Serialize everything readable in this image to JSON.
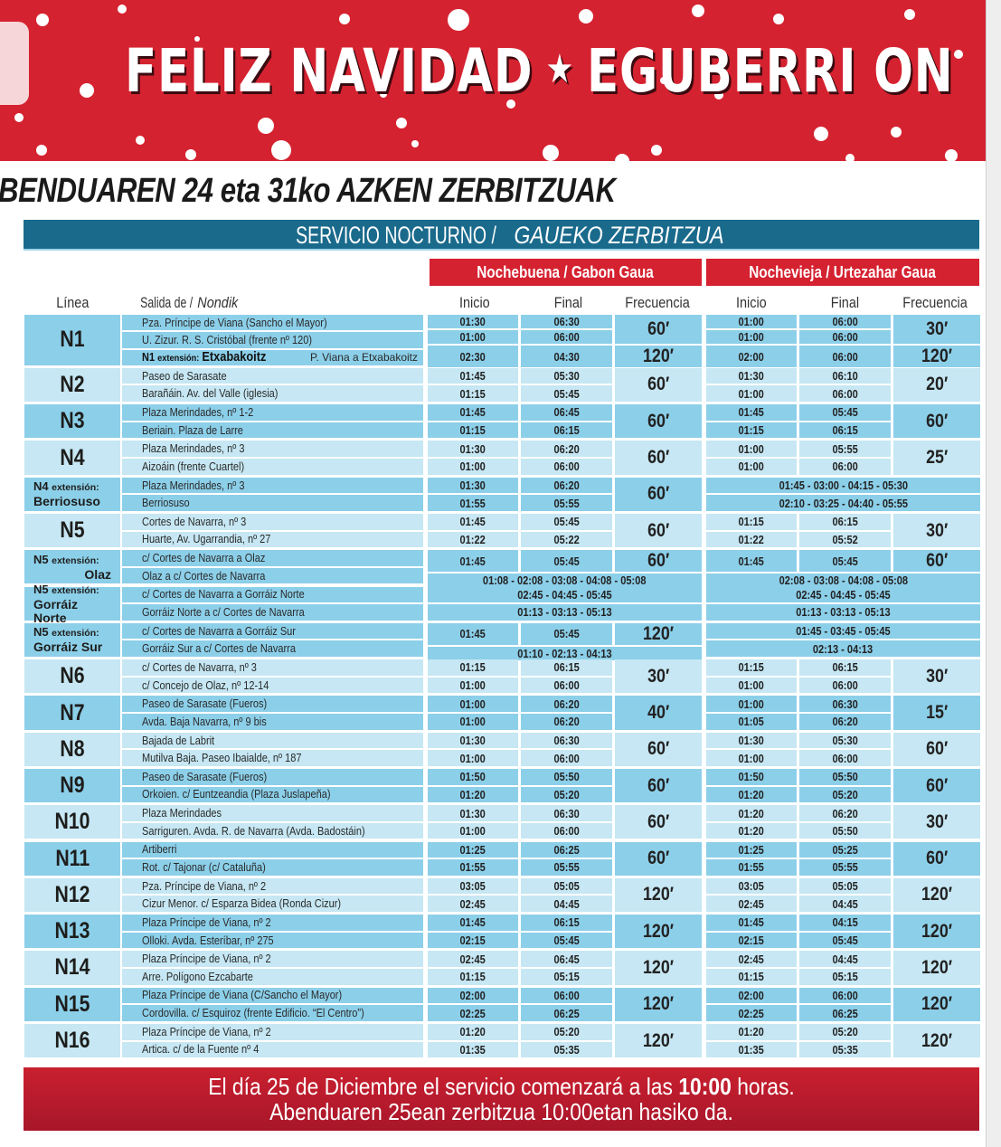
{
  "banner": {
    "text_left": "FELIZ NAVIDAD",
    "text_right": "EGUBERRI ON",
    "ornament_icon": "star-ornament-icon",
    "color": "#d52230"
  },
  "title": "BENDUAREN 24 eta 31ko AZKEN ZERBITZUAK",
  "service": {
    "es": "SERVICIO NOCTURNO / ",
    "eu": "GAUEKO ZERBITZUA",
    "color": "#1a6a8c"
  },
  "nights": {
    "nochebuena": "Nochebuena / Gabon Gaua",
    "nochevieja": "Nochevieja / Urtezahar Gaua"
  },
  "columns": {
    "linea": "Línea",
    "salida": "Salida de / ",
    "nondik": "Nondik",
    "inicio": "Inicio",
    "final": "Final",
    "frecuencia": "Frecuencia"
  },
  "colors": {
    "row_dark": "#8ccfe9",
    "row_light": "#c6e7f3",
    "red": "#d52230"
  },
  "groups": [
    {
      "line": "N1",
      "shade": "dark",
      "origins": [
        {
          "text": "Pza. Príncipe de Viana (Sancho el Mayor)"
        },
        {
          "text": "U. Zizur.  R. S. Cristóbal (frente nº 120)"
        },
        {
          "ext_line": "N1",
          "ext_word": "extensión:",
          "ext_name": "Etxabakoitz",
          "text": "P. Viana a Etxabakoitz"
        }
      ],
      "nb": [
        {
          "inicio": [
            "01:30",
            "01:00"
          ],
          "final": [
            "06:30",
            "06:00"
          ],
          "freq": "60′"
        },
        {
          "inicio": [
            "02:30"
          ],
          "final": [
            "04:30"
          ],
          "freq": "120′"
        }
      ],
      "nv": [
        {
          "inicio": [
            "01:00",
            "01:00"
          ],
          "final": [
            "06:00",
            "06:00"
          ],
          "freq": "30′"
        },
        {
          "inicio": [
            "02:00"
          ],
          "final": [
            "06:00"
          ],
          "freq": "120′"
        }
      ]
    },
    {
      "line": "N2",
      "shade": "light",
      "origins": [
        {
          "text": "Paseo de Sarasate"
        },
        {
          "text": "Barañáin. Av. del Valle (iglesia)"
        }
      ],
      "nb": [
        {
          "inicio": [
            "01:45",
            "01:15"
          ],
          "final": [
            "05:30",
            "05:45"
          ],
          "freq": "60′"
        }
      ],
      "nv": [
        {
          "inicio": [
            "01:30",
            "01:00"
          ],
          "final": [
            "06:10",
            "06:00"
          ],
          "freq": "20′"
        }
      ]
    },
    {
      "line": "N3",
      "shade": "dark",
      "origins": [
        {
          "text": "Plaza Merindades, nº 1-2"
        },
        {
          "text": "Beriain. Plaza de Larre"
        }
      ],
      "nb": [
        {
          "inicio": [
            "01:45",
            "01:15"
          ],
          "final": [
            "06:45",
            "06:15"
          ],
          "freq": "60′"
        }
      ],
      "nv": [
        {
          "inicio": [
            "01:45",
            "01:15"
          ],
          "final": [
            "05:45",
            "06:15"
          ],
          "freq": "60′"
        }
      ]
    },
    {
      "line": "N4",
      "shade": "light",
      "origins": [
        {
          "text": "Plaza Merindades, nº 3"
        },
        {
          "text": "Aizoáin (frente Cuartel)"
        }
      ],
      "nb": [
        {
          "inicio": [
            "01:30",
            "01:00"
          ],
          "final": [
            "06:20",
            "06:00"
          ],
          "freq": "60′"
        }
      ],
      "nv": [
        {
          "inicio": [
            "01:00",
            "01:00"
          ],
          "final": [
            "05:55",
            "06:00"
          ],
          "freq": "25′"
        }
      ]
    },
    {
      "line": "N4",
      "ext_word": "extensión:",
      "ext_name": "Berriosuso",
      "shade": "dark",
      "origins": [
        {
          "text": "Plaza Merindades, nº 3"
        },
        {
          "text": "Berriosuso"
        }
      ],
      "nb": [
        {
          "inicio": [
            "01:30",
            "01:55"
          ],
          "final": [
            "06:20",
            "05:55"
          ],
          "freq": "60′"
        }
      ],
      "nv": [
        {
          "merged": "01:45 - 03:00 - 04:15 - 05:30"
        },
        {
          "merged": "02:10 - 03:25 - 04:40 - 05:55"
        }
      ]
    },
    {
      "line": "N5",
      "shade": "light",
      "origins": [
        {
          "text": "Cortes de Navarra, nº 3"
        },
        {
          "text": "Huarte, Av. Ugarrandia, nº 27"
        }
      ],
      "nb": [
        {
          "inicio": [
            "01:45",
            "01:22"
          ],
          "final": [
            "05:45",
            "05:22"
          ],
          "freq": "60′"
        }
      ],
      "nv": [
        {
          "inicio": [
            "01:15",
            "01:22"
          ],
          "final": [
            "06:15",
            "05:52"
          ],
          "freq": "30′"
        }
      ]
    },
    {
      "line": "N5",
      "ext_word": "extensión:",
      "ext_name": "Olaz",
      "ext_right": true,
      "shade": "dark",
      "origins": [
        {
          "text": "c/ Cortes de Navarra a Olaz"
        },
        {
          "text": "Olaz a c/ Cortes de Navarra"
        }
      ],
      "nb": [
        {
          "inicio": [
            "01:45"
          ],
          "final": [
            "05:45"
          ],
          "freq": "60′"
        },
        {
          "merged": "01:08 - 02:08 - 03:08 - 04:08 - 05:08"
        }
      ],
      "nv": [
        {
          "inicio": [
            "01:45"
          ],
          "final": [
            "05:45"
          ],
          "freq": "60′"
        },
        {
          "merged": "02:08 - 03:08 - 04:08 - 05:08"
        }
      ]
    },
    {
      "line": "N5",
      "ext_word": "extensión:",
      "ext_name": "Gorráiz Norte",
      "shade": "dark",
      "origins": [
        {
          "text": "c/ Cortes de Navarra a Gorráiz Norte"
        },
        {
          "text": "Gorráiz Norte a c/ Cortes de Navarra"
        }
      ],
      "nb": [
        {
          "merged": "02:45 - 04:45 - 05:45"
        },
        {
          "merged": "01:13 - 03:13 - 05:13"
        }
      ],
      "nv": [
        {
          "merged": "02:45 - 04:45 - 05:45"
        },
        {
          "merged": "01:13 - 03:13 - 05:13"
        }
      ]
    },
    {
      "line": "N5",
      "ext_word": "extensión:",
      "ext_name": "Gorráiz Sur",
      "shade": "dark",
      "origins": [
        {
          "text": "c/ Cortes de Navarra a Gorráiz Sur"
        },
        {
          "text": "Gorráiz Sur a c/ Cortes de Navarra"
        }
      ],
      "nb": [
        {
          "inicio": [
            "01:45"
          ],
          "final": [
            "05:45"
          ],
          "freq": "120′"
        },
        {
          "merged": "01:10 - 02:13 - 04:13"
        }
      ],
      "nv": [
        {
          "merged": "01:45 - 03:45 - 05:45"
        },
        {
          "merged": "02:13 - 04:13"
        }
      ]
    },
    {
      "line": "N6",
      "shade": "light",
      "origins": [
        {
          "text": "c/ Cortes de Navarra, nº 3"
        },
        {
          "text": "c/ Concejo de Olaz, nº 12-14"
        }
      ],
      "nb": [
        {
          "inicio": [
            "01:15",
            "01:00"
          ],
          "final": [
            "06:15",
            "06:00"
          ],
          "freq": "30′"
        }
      ],
      "nv": [
        {
          "inicio": [
            "01:15",
            "01:00"
          ],
          "final": [
            "06:15",
            "06:00"
          ],
          "freq": "30′"
        }
      ]
    },
    {
      "line": "N7",
      "shade": "dark",
      "origins": [
        {
          "text": "Paseo de Sarasate (Fueros)"
        },
        {
          "text": "Avda. Baja Navarra, nº 9 bis"
        }
      ],
      "nb": [
        {
          "inicio": [
            "01:00",
            "01:00"
          ],
          "final": [
            "06:20",
            "06:20"
          ],
          "freq": "40′"
        }
      ],
      "nv": [
        {
          "inicio": [
            "01:00",
            "01:05"
          ],
          "final": [
            "06:30",
            "06:20"
          ],
          "freq": "15′"
        }
      ]
    },
    {
      "line": "N8",
      "shade": "light",
      "origins": [
        {
          "text": "Bajada de Labrit"
        },
        {
          "text": "Mutilva Baja. Paseo Ibaialde, nº 187"
        }
      ],
      "nb": [
        {
          "inicio": [
            "01:30",
            "01:00"
          ],
          "final": [
            "06:30",
            "06:00"
          ],
          "freq": "60′"
        }
      ],
      "nv": [
        {
          "inicio": [
            "01:30",
            "01:00"
          ],
          "final": [
            "05:30",
            "06:00"
          ],
          "freq": "60′"
        }
      ]
    },
    {
      "line": "N9",
      "shade": "dark",
      "origins": [
        {
          "text": "Paseo de Sarasate (Fueros)"
        },
        {
          "text": "Orkoien. c/ Euntzeandia (Plaza Juslapeña)"
        }
      ],
      "nb": [
        {
          "inicio": [
            "01:50",
            "01:20"
          ],
          "final": [
            "05:50",
            "05:20"
          ],
          "freq": "60′"
        }
      ],
      "nv": [
        {
          "inicio": [
            "01:50",
            "01:20"
          ],
          "final": [
            "05:50",
            "05:20"
          ],
          "freq": "60′"
        }
      ]
    },
    {
      "line": "N10",
      "shade": "light",
      "origins": [
        {
          "text": "Plaza Merindades"
        },
        {
          "text": "Sarriguren. Avda. R. de Navarra (Avda. Badostáin)"
        }
      ],
      "nb": [
        {
          "inicio": [
            "01:30",
            "01:00"
          ],
          "final": [
            "06:30",
            "06:00"
          ],
          "freq": "60′"
        }
      ],
      "nv": [
        {
          "inicio": [
            "01:20",
            "01:20"
          ],
          "final": [
            "06:20",
            "05:50"
          ],
          "freq": "30′"
        }
      ]
    },
    {
      "line": "N11",
      "shade": "dark",
      "origins": [
        {
          "text": "Artiberri"
        },
        {
          "text": "Rot. c/ Tajonar (c/ Cataluña)"
        }
      ],
      "nb": [
        {
          "inicio": [
            "01:25",
            "01:55"
          ],
          "final": [
            "06:25",
            "05:55"
          ],
          "freq": "60′"
        }
      ],
      "nv": [
        {
          "inicio": [
            "01:25",
            "01:55"
          ],
          "final": [
            "05:25",
            "05:55"
          ],
          "freq": "60′"
        }
      ]
    },
    {
      "line": "N12",
      "shade": "light",
      "origins": [
        {
          "text": "Pza. Príncipe de Viana, nº 2"
        },
        {
          "text": "Cizur Menor. c/ Esparza Bidea (Ronda Cizur)"
        }
      ],
      "nb": [
        {
          "inicio": [
            "03:05",
            "02:45"
          ],
          "final": [
            "05:05",
            "04:45"
          ],
          "freq": "120′"
        }
      ],
      "nv": [
        {
          "inicio": [
            "03:05",
            "02:45"
          ],
          "final": [
            "05:05",
            "04:45"
          ],
          "freq": "120′"
        }
      ]
    },
    {
      "line": "N13",
      "shade": "dark",
      "origins": [
        {
          "text": "Plaza Príncipe de Viana, nº 2"
        },
        {
          "text": "Olloki. Avda. Esteríbar, nº 275"
        }
      ],
      "nb": [
        {
          "inicio": [
            "01:45",
            "02:15"
          ],
          "final": [
            "06:15",
            "05:45"
          ],
          "freq": "120′"
        }
      ],
      "nv": [
        {
          "inicio": [
            "01:45",
            "02:15"
          ],
          "final": [
            "04:15",
            "05:45"
          ],
          "freq": "120′"
        }
      ]
    },
    {
      "line": "N14",
      "shade": "light",
      "origins": [
        {
          "text": "Plaza Príncipe de Viana, nº 2"
        },
        {
          "text": "Arre. Polígono Ezcabarte"
        }
      ],
      "nb": [
        {
          "inicio": [
            "02:45",
            "01:15"
          ],
          "final": [
            "06:45",
            "05:15"
          ],
          "freq": "120′"
        }
      ],
      "nv": [
        {
          "inicio": [
            "02:45",
            "01:15"
          ],
          "final": [
            "04:45",
            "05:15"
          ],
          "freq": "120′"
        }
      ]
    },
    {
      "line": "N15",
      "shade": "dark",
      "origins": [
        {
          "text": "Plaza Príncipe de Viana (C/Sancho el Mayor)"
        },
        {
          "text": "Cordovilla. c/ Esquiroz (frente Edificio. “El Centro”)"
        }
      ],
      "nb": [
        {
          "inicio": [
            "02:00",
            "02:25"
          ],
          "final": [
            "06:00",
            "06:25"
          ],
          "freq": "120′"
        }
      ],
      "nv": [
        {
          "inicio": [
            "02:00",
            "02:25"
          ],
          "final": [
            "06:00",
            "06:25"
          ],
          "freq": "120′"
        }
      ]
    },
    {
      "line": "N16",
      "shade": "light",
      "origins": [
        {
          "text": "Plaza Príncipe de Viana, nº 2"
        },
        {
          "text": "Artica. c/ de la Fuente nº 4"
        }
      ],
      "nb": [
        {
          "inicio": [
            "01:20",
            "01:35"
          ],
          "final": [
            "05:20",
            "05:35"
          ],
          "freq": "120′"
        }
      ],
      "nv": [
        {
          "inicio": [
            "01:20",
            "01:35"
          ],
          "final": [
            "05:20",
            "05:35"
          ],
          "freq": "120′"
        }
      ]
    }
  ],
  "footer": {
    "line1_pre": "El día 25 de Diciembre el servicio comenzará a las ",
    "line1_bold": "10:00",
    "line1_post": " horas.",
    "line2": "Abenduaren 25ean zerbitzua 10:00etan hasiko da."
  }
}
